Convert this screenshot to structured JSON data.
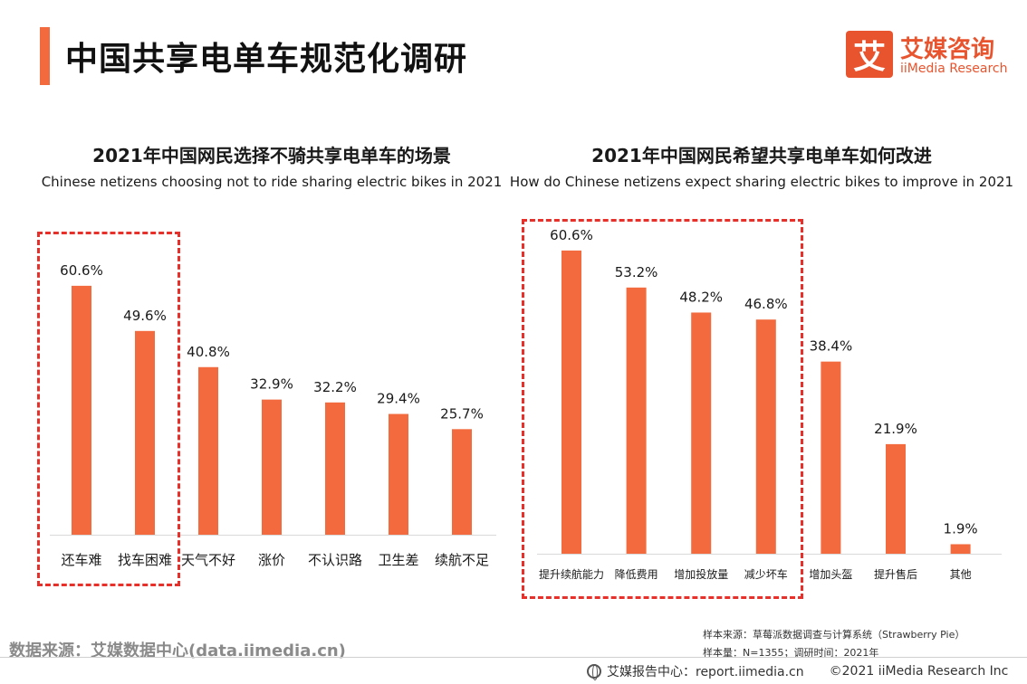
{
  "header": {
    "title": "中国共享电单车规范化调研",
    "logo_mark": "艾",
    "logo_cn": "艾媒咨询",
    "logo_en": "iiMedia Research"
  },
  "chart_data": [
    {
      "type": "bar",
      "title": "2021年中国网民选择不骑共享电单车的场景",
      "subtitle": "Chinese netizens choosing not to ride sharing electric bikes in 2021",
      "categories": [
        "还车难",
        "找车困难",
        "天气不好",
        "涨价",
        "不认识路",
        "卫生差",
        "续航不足"
      ],
      "values": [
        60.6,
        49.6,
        40.8,
        32.9,
        32.2,
        29.4,
        25.7
      ],
      "value_labels": [
        "60.6%",
        "49.6%",
        "40.8%",
        "32.9%",
        "32.2%",
        "29.4%",
        "25.7%"
      ],
      "highlighted_categories": [
        "还车难",
        "找车困难"
      ],
      "color": "#f26a3d",
      "ylim": [
        0,
        100
      ],
      "grid": false
    },
    {
      "type": "bar",
      "title": "2021年中国网民希望共享电单车如何改进",
      "subtitle": "How do Chinese netizens expect sharing electric bikes to improve in 2021",
      "categories": [
        "提升续航能力",
        "降低费用",
        "增加投放量",
        "减少坏车",
        "增加头盔",
        "提升售后",
        "其他"
      ],
      "values": [
        60.6,
        53.2,
        48.2,
        46.8,
        38.4,
        21.9,
        1.9
      ],
      "value_labels": [
        "60.6%",
        "53.2%",
        "48.2%",
        "46.8%",
        "38.4%",
        "21.9%",
        "1.9%"
      ],
      "highlighted_categories": [
        "提升续航能力",
        "降低费用",
        "增加投放量",
        "减少坏车"
      ],
      "color": "#f26a3d",
      "ylim": [
        0,
        100
      ],
      "grid": false
    }
  ],
  "footer": {
    "source": "数据来源：艾媒数据中心(data.iimedia.cn)",
    "sample_source": "样本来源：草莓派数据调查与计算系统（Strawberry Pie）",
    "sample_size": "样本量：N=1355；调研时间：2021年",
    "center": "艾媒报告中心：report.iimedia.cn",
    "copyright": "©2021  iiMedia Research  Inc"
  }
}
